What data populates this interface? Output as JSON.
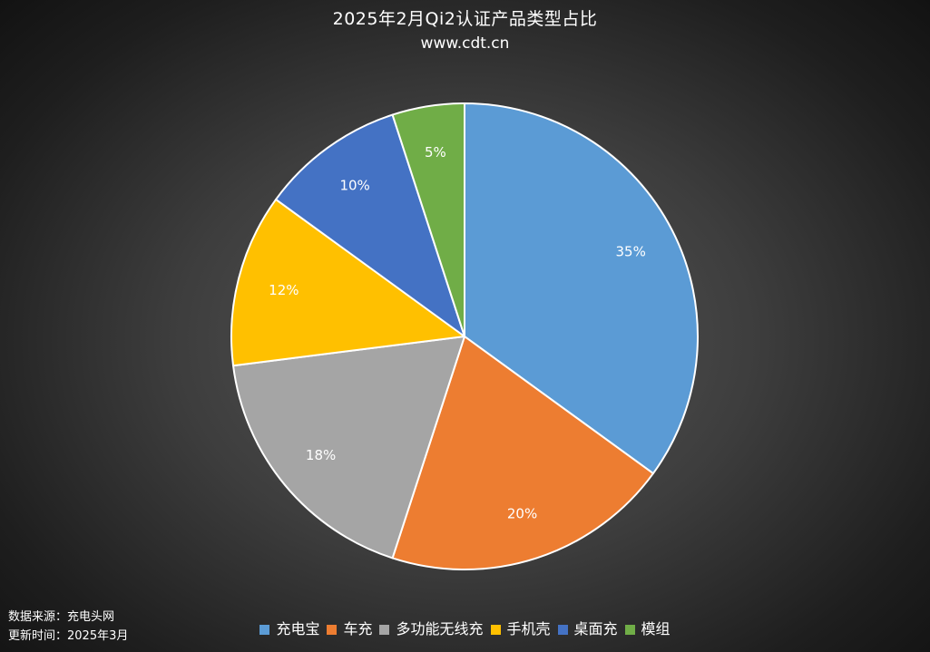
{
  "chart_data": {
    "type": "pie",
    "title": "2025年2月Qi2认证产品类型占比",
    "subtitle": "www.cdt.cn",
    "categories": [
      "充电宝",
      "车充",
      "多功能无线充",
      "手机壳",
      "桌面充",
      "模组"
    ],
    "values": [
      35,
      20,
      18,
      12,
      10,
      5
    ],
    "labels": [
      "35%",
      "20%",
      "18%",
      "12%",
      "10%",
      "5%"
    ],
    "colors": [
      "#5b9bd5",
      "#ed7d31",
      "#a5a5a5",
      "#ffc000",
      "#4472c4",
      "#70ad47"
    ],
    "legend_position": "bottom"
  },
  "footnotes": {
    "source": "数据来源：充电头网",
    "updated": "更新时间：2025年3月"
  }
}
